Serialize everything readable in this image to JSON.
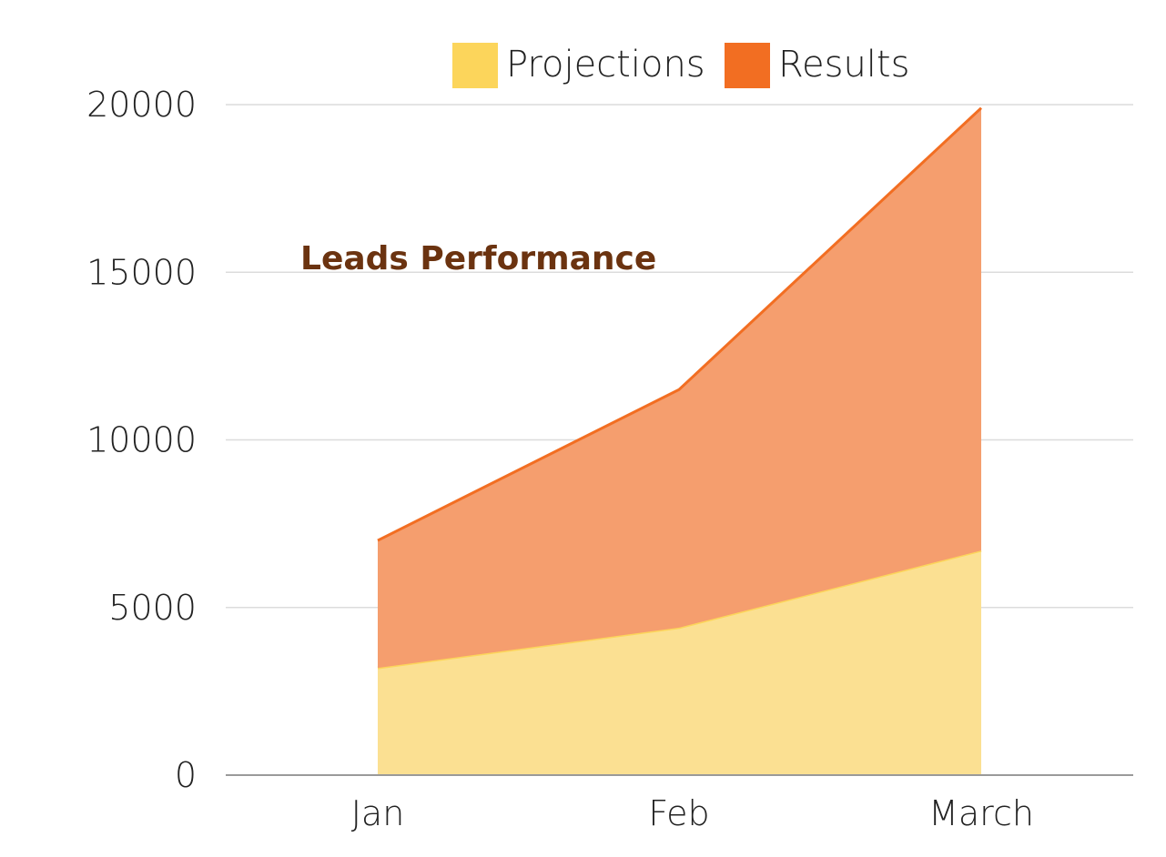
{
  "chart_data": {
    "type": "area",
    "title": "Leads Performance",
    "categories": [
      "Jan",
      "Feb",
      "March"
    ],
    "stacked": true,
    "series": [
      {
        "name": "Projections",
        "values": [
          3200,
          4400,
          6700
        ],
        "color": "#fcd55b",
        "fill": "#fbe092"
      },
      {
        "name": "Results",
        "values": [
          3800,
          7100,
          13200
        ],
        "color": "#f26e22",
        "fill": "#f59e6e"
      }
    ],
    "ylim": [
      0,
      20000
    ],
    "yticks": [
      0,
      5000,
      10000,
      15000,
      20000
    ],
    "grid": true,
    "legend": "top"
  }
}
